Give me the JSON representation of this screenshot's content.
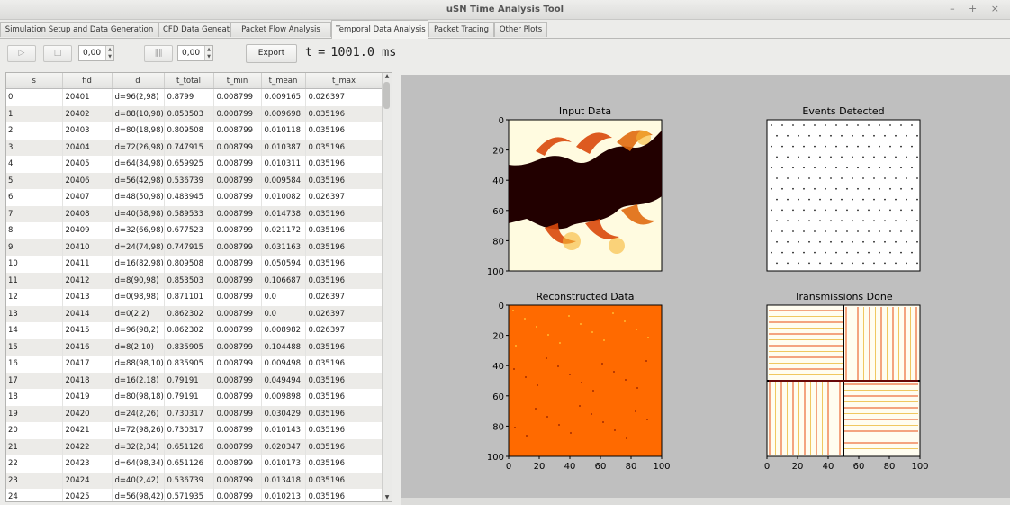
{
  "window": {
    "title": "uSN Time Analysis Tool",
    "controls": "– + ×"
  },
  "tabs": [
    {
      "label": "Simulation Setup and Data Generation",
      "active": false
    },
    {
      "label": "CFD Data Geneation",
      "active": false
    },
    {
      "label": "Packet Flow Analysis",
      "active": false
    },
    {
      "label": "Temporal Data Analysis",
      "active": true
    },
    {
      "label": "Packet Tracing",
      "active": false
    },
    {
      "label": "Other Plots",
      "active": false
    }
  ],
  "toolbar": {
    "play_icon": "play-icon",
    "stop_icon": "stop-icon",
    "step_icon": "step-icon",
    "spin1_value": "0,00",
    "spin2_value": "0,00",
    "export_label": "Export",
    "time_name": "t",
    "time_eq": "=",
    "time_value": "1001.0 ms"
  },
  "table": {
    "headers": [
      "s",
      "fid",
      "d",
      "t_total",
      "t_min",
      "t_mean",
      "t_max"
    ],
    "rows": [
      [
        "0",
        "20401",
        "d=96(2,98)",
        "0.8799",
        "0.008799",
        "0.009165",
        "0.026397"
      ],
      [
        "1",
        "20402",
        "d=88(10,98)",
        "0.853503",
        "0.008799",
        "0.009698",
        "0.035196"
      ],
      [
        "2",
        "20403",
        "d=80(18,98)",
        "0.809508",
        "0.008799",
        "0.010118",
        "0.035196"
      ],
      [
        "3",
        "20404",
        "d=72(26,98)",
        "0.747915",
        "0.008799",
        "0.010387",
        "0.035196"
      ],
      [
        "4",
        "20405",
        "d=64(34,98)",
        "0.659925",
        "0.008799",
        "0.010311",
        "0.035196"
      ],
      [
        "5",
        "20406",
        "d=56(42,98)",
        "0.536739",
        "0.008799",
        "0.009584",
        "0.035196"
      ],
      [
        "6",
        "20407",
        "d=48(50,98)",
        "0.483945",
        "0.008799",
        "0.010082",
        "0.026397"
      ],
      [
        "7",
        "20408",
        "d=40(58,98)",
        "0.589533",
        "0.008799",
        "0.014738",
        "0.035196"
      ],
      [
        "8",
        "20409",
        "d=32(66,98)",
        "0.677523",
        "0.008799",
        "0.021172",
        "0.035196"
      ],
      [
        "9",
        "20410",
        "d=24(74,98)",
        "0.747915",
        "0.008799",
        "0.031163",
        "0.035196"
      ],
      [
        "10",
        "20411",
        "d=16(82,98)",
        "0.809508",
        "0.008799",
        "0.050594",
        "0.035196"
      ],
      [
        "11",
        "20412",
        "d=8(90,98)",
        "0.853503",
        "0.008799",
        "0.106687",
        "0.035196"
      ],
      [
        "12",
        "20413",
        "d=0(98,98)",
        "0.871101",
        "0.008799",
        "0.0",
        "0.026397"
      ],
      [
        "13",
        "20414",
        "d=0(2,2)",
        "0.862302",
        "0.008799",
        "0.0",
        "0.026397"
      ],
      [
        "14",
        "20415",
        "d=96(98,2)",
        "0.862302",
        "0.008799",
        "0.008982",
        "0.026397"
      ],
      [
        "15",
        "20416",
        "d=8(2,10)",
        "0.835905",
        "0.008799",
        "0.104488",
        "0.035196"
      ],
      [
        "16",
        "20417",
        "d=88(98,10)",
        "0.835905",
        "0.008799",
        "0.009498",
        "0.035196"
      ],
      [
        "17",
        "20418",
        "d=16(2,18)",
        "0.79191",
        "0.008799",
        "0.049494",
        "0.035196"
      ],
      [
        "18",
        "20419",
        "d=80(98,18)",
        "0.79191",
        "0.008799",
        "0.009898",
        "0.035196"
      ],
      [
        "19",
        "20420",
        "d=24(2,26)",
        "0.730317",
        "0.008799",
        "0.030429",
        "0.035196"
      ],
      [
        "20",
        "20421",
        "d=72(98,26)",
        "0.730317",
        "0.008799",
        "0.010143",
        "0.035196"
      ],
      [
        "21",
        "20422",
        "d=32(2,34)",
        "0.651126",
        "0.008799",
        "0.020347",
        "0.035196"
      ],
      [
        "22",
        "20423",
        "d=64(98,34)",
        "0.651126",
        "0.008799",
        "0.010173",
        "0.035196"
      ],
      [
        "23",
        "20424",
        "d=40(2,42)",
        "0.536739",
        "0.008799",
        "0.013418",
        "0.035196"
      ],
      [
        "24",
        "20425",
        "d=56(98,42)",
        "0.571935",
        "0.008799",
        "0.010213",
        "0.035196"
      ]
    ]
  },
  "plots": {
    "panels": [
      {
        "title": "Input Data"
      },
      {
        "title": "Events Detected"
      },
      {
        "title": "Reconstructed Data"
      },
      {
        "title": "Transmissions Done"
      }
    ],
    "y_ticks": [
      "0",
      "20",
      "40",
      "60",
      "80",
      "100"
    ],
    "x_ticks": [
      "0",
      "20",
      "40",
      "60",
      "80",
      "100"
    ],
    "colors": {
      "dark": "#220000",
      "hot": "#ff6a00",
      "light": "#fffbe0",
      "red": "#d01010",
      "panel_bg": "#bfbfbf"
    }
  }
}
